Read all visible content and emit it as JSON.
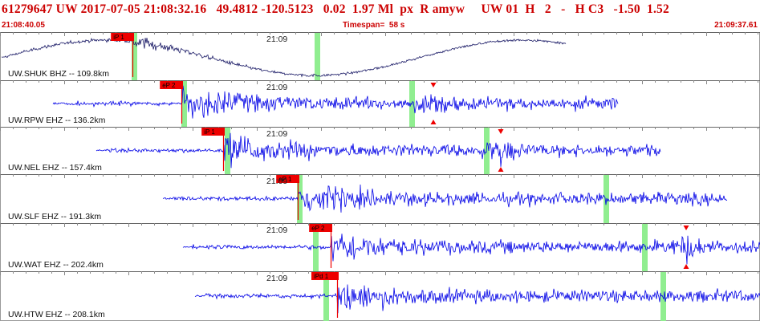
{
  "header": {
    "event_line": "61279647 UW 2017-07-05 21:08:32.16   49.4812 -120.5123   0.02  1.97 Ml  px  R amyw     UW 01  H   2   -   H C3   -1.50  1.52",
    "start_time": "21:08:40.05",
    "timespan_label": "Timespan=",
    "timespan_value": "58 s",
    "end_time": "21:09:37.61"
  },
  "colors": {
    "header_text": "#cc0000",
    "trace_blue": "#0000e6",
    "trace_dark": "#1a1a66",
    "pick_red": "#ee0000",
    "window_green": "#90ee90",
    "tick_gray": "#888888"
  },
  "traces": [
    {
      "station": "UW.SHUK BHZ -- 109.8km",
      "time_mark": "21:09",
      "pick": "iP 1",
      "color": "dark"
    },
    {
      "station": "UW.RPW EHZ -- 136.2km",
      "time_mark": "21:09",
      "pick": "eP 2",
      "color": "blue"
    },
    {
      "station": "UW.NEL EHZ -- 157.4km",
      "time_mark": "21:09",
      "pick": "iP 1",
      "color": "blue"
    },
    {
      "station": "UW.SLF EHZ -- 191.3km",
      "time_mark": "21:09",
      "pick": "eP 1",
      "color": "blue"
    },
    {
      "station": "UW.WAT EHZ -- 202.4km",
      "time_mark": "21:09",
      "pick": "eP 2",
      "color": "blue"
    },
    {
      "station": "UW.HTW EHZ -- 208.1km",
      "time_mark": "21:09",
      "pick": "iPd 1",
      "color": "blue"
    }
  ]
}
